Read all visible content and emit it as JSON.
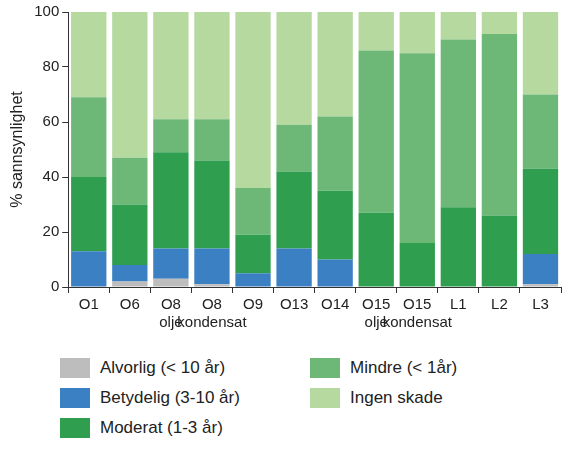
{
  "chart_data": {
    "type": "bar",
    "stacked": true,
    "ylabel": "% sannsynlighet",
    "categories": [
      "O1",
      "O6",
      "O8 olje",
      "O8 kondensat",
      "O9",
      "O13",
      "O14",
      "O15 olje",
      "O15 kondensat",
      "L1",
      "L2",
      "L3"
    ],
    "series": [
      {
        "name": "Alvorlig (< 10 år)",
        "color": "#bdbdbd",
        "values": [
          0,
          2,
          3,
          1,
          0,
          0,
          0,
          0,
          0,
          0,
          0,
          1
        ]
      },
      {
        "name": "Betydelig (3-10 år)",
        "color": "#3b80c2",
        "values": [
          13,
          6,
          11,
          13,
          5,
          14,
          10,
          0,
          0,
          0,
          0,
          11
        ]
      },
      {
        "name": "Moderat (1-3 år)",
        "color": "#2f9e4f",
        "values": [
          27,
          22,
          35,
          32,
          14,
          28,
          25,
          27,
          16,
          29,
          26,
          31
        ]
      },
      {
        "name": "Mindre (< 1år)",
        "color": "#6db877",
        "values": [
          29,
          17,
          12,
          15,
          17,
          17,
          27,
          59,
          69,
          61,
          66,
          27
        ]
      },
      {
        "name": "Ingen skade",
        "color": "#b5d99e",
        "values": [
          31,
          53,
          39,
          39,
          64,
          41,
          38,
          14,
          15,
          10,
          8,
          30
        ]
      }
    ],
    "ylim": [
      0,
      100
    ],
    "yticks": [
      0,
      20,
      40,
      60,
      80,
      100
    ],
    "grid": false,
    "legend": "bottom"
  }
}
